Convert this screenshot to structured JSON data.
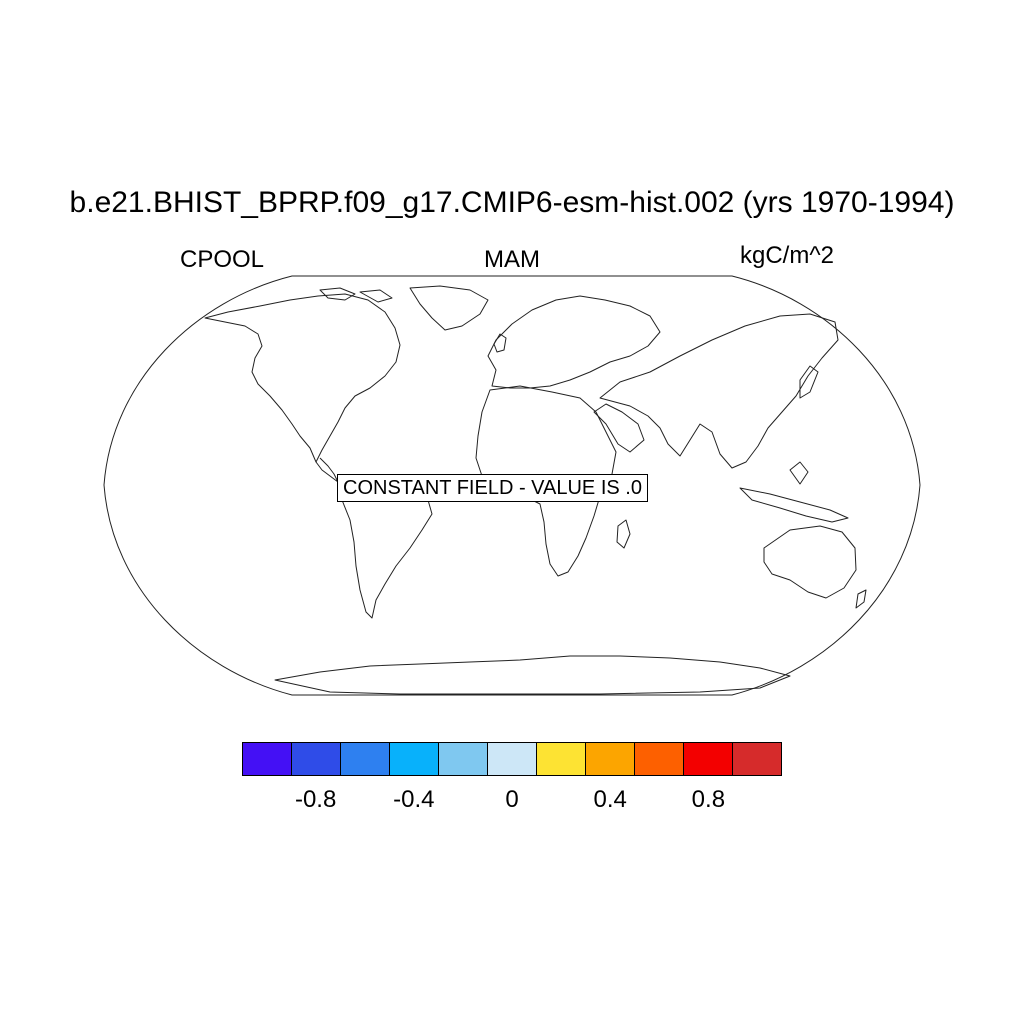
{
  "title": "b.e21.BHIST_BPRP.f09_g17.CMIP6-esm-hist.002 (yrs 1970-1994)",
  "left_label": "CPOOL",
  "center_label": "MAM",
  "right_label": "kgC/m^2",
  "map": {
    "projection": "Robinson",
    "field_message": "CONSTANT FIELD - VALUE IS .0",
    "coastlines": "on"
  },
  "colorbar": {
    "colors": [
      "#4410f5",
      "#2f4ce8",
      "#2e80f0",
      "#08b1fb",
      "#7fc8f0",
      "#cde7f7",
      "#fde333",
      "#fca500",
      "#fd6000",
      "#f30000",
      "#d62b2b"
    ],
    "ticks": [
      "-0.8",
      "-0.4",
      "0",
      "0.4",
      "0.8"
    ],
    "tick_values": [
      -0.8,
      -0.4,
      0,
      0.4,
      0.8
    ],
    "min": -1.1,
    "max": 1.1
  }
}
